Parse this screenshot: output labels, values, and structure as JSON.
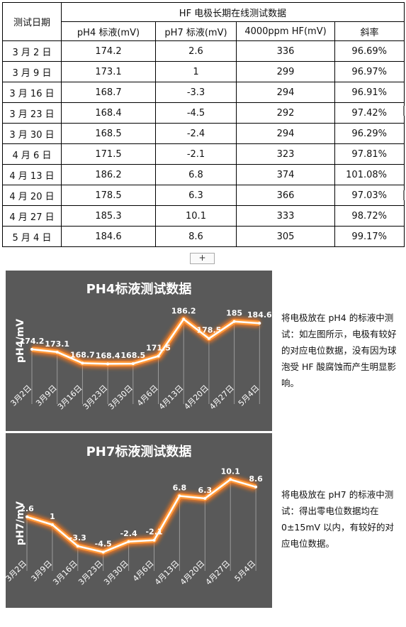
{
  "table": {
    "col_date": "测试日期",
    "main_title": "HF 电极长期在线测试数据",
    "columns": [
      "pH4 标液(mV)",
      "pH7 标液(mV)",
      "4000ppm HF(mV)",
      "斜率"
    ],
    "rows": [
      [
        "3 月 2 日",
        "174.2",
        "2.6",
        "336",
        "96.69%"
      ],
      [
        "3 月 9 日",
        "173.1",
        "1",
        "299",
        "96.97%"
      ],
      [
        "3 月 16 日",
        "168.7",
        "-3.3",
        "294",
        "96.91%"
      ],
      [
        "3 月 23 日",
        "168.4",
        "-4.5",
        "292",
        "97.42%"
      ],
      [
        "3 月 30 日",
        "168.5",
        "-2.4",
        "294",
        "96.29%"
      ],
      [
        "4 月 6 日",
        "171.5",
        "-2.1",
        "323",
        "97.81%"
      ],
      [
        "4 月 13 日",
        "186.2",
        "6.8",
        "374",
        "101.08%"
      ],
      [
        "4 月 20 日",
        "178.5",
        "6.3",
        "366",
        "97.03%"
      ],
      [
        "4 月 27 日",
        "185.3",
        "10.1",
        "333",
        "98.72%"
      ],
      [
        "5 月 4 日",
        "184.6",
        "8.6",
        "305",
        "99.17%"
      ]
    ],
    "add_row_glyph": "+"
  },
  "chart_data": [
    {
      "type": "line",
      "title": "PH4标液测试数据",
      "ylabel": "pH4/mV",
      "xlabel": "",
      "categories": [
        "3月2日",
        "3月9日",
        "3月16日",
        "3月23日",
        "3月30日",
        "4月6日",
        "4月13日",
        "4月20日",
        "4月27日",
        "5月4日"
      ],
      "values": [
        174.2,
        173.1,
        168.7,
        168.4,
        168.5,
        171.5,
        186.2,
        178.5,
        185.3,
        184.6
      ],
      "data_labels": [
        "174.2",
        "173.1",
        "168.7",
        "168.4",
        "168.5",
        "171.5",
        "186.2",
        "178.5",
        "185",
        "184.6"
      ],
      "ylim": [
        164,
        192
      ],
      "grid": false,
      "legend": "none",
      "colors": {
        "background": "#595959",
        "line": "#ffffff",
        "glow": "#ff7a1a",
        "text": "#ffffff"
      }
    },
    {
      "type": "line",
      "title": "PH7标液测试数据",
      "ylabel": "pH7/mV",
      "xlabel": "",
      "categories": [
        "3月2日",
        "3月9日",
        "3月16日",
        "3月23日",
        "3月30日",
        "4月6日",
        "4月13日",
        "4月20日",
        "4月27日",
        "5月4日"
      ],
      "values": [
        2.6,
        1,
        -3.3,
        -4.5,
        -2.4,
        -2.1,
        6.8,
        6.3,
        10.1,
        8.6
      ],
      "data_labels": [
        "2.6",
        "1",
        "-3.3",
        "-4.5",
        "-2.4",
        "-2.1",
        "6.8",
        "6.3",
        "10.1",
        "8.6"
      ],
      "ylim": [
        -8,
        14
      ],
      "grid": false,
      "legend": "none",
      "colors": {
        "background": "#595959",
        "line": "#ffffff",
        "glow": "#ff7a1a",
        "text": "#ffffff"
      }
    }
  ],
  "notes": [
    "将电极放在 pH4 的标液中测试：如左图所示，电极有较好的对应电位数据，没有因为球泡受 HF 酸腐蚀而产生明显影响。",
    "将电极放在 pH7 的标液中测试：得出零电位数据均在 0±15mV 以内，有较好的对应电位数据。"
  ]
}
